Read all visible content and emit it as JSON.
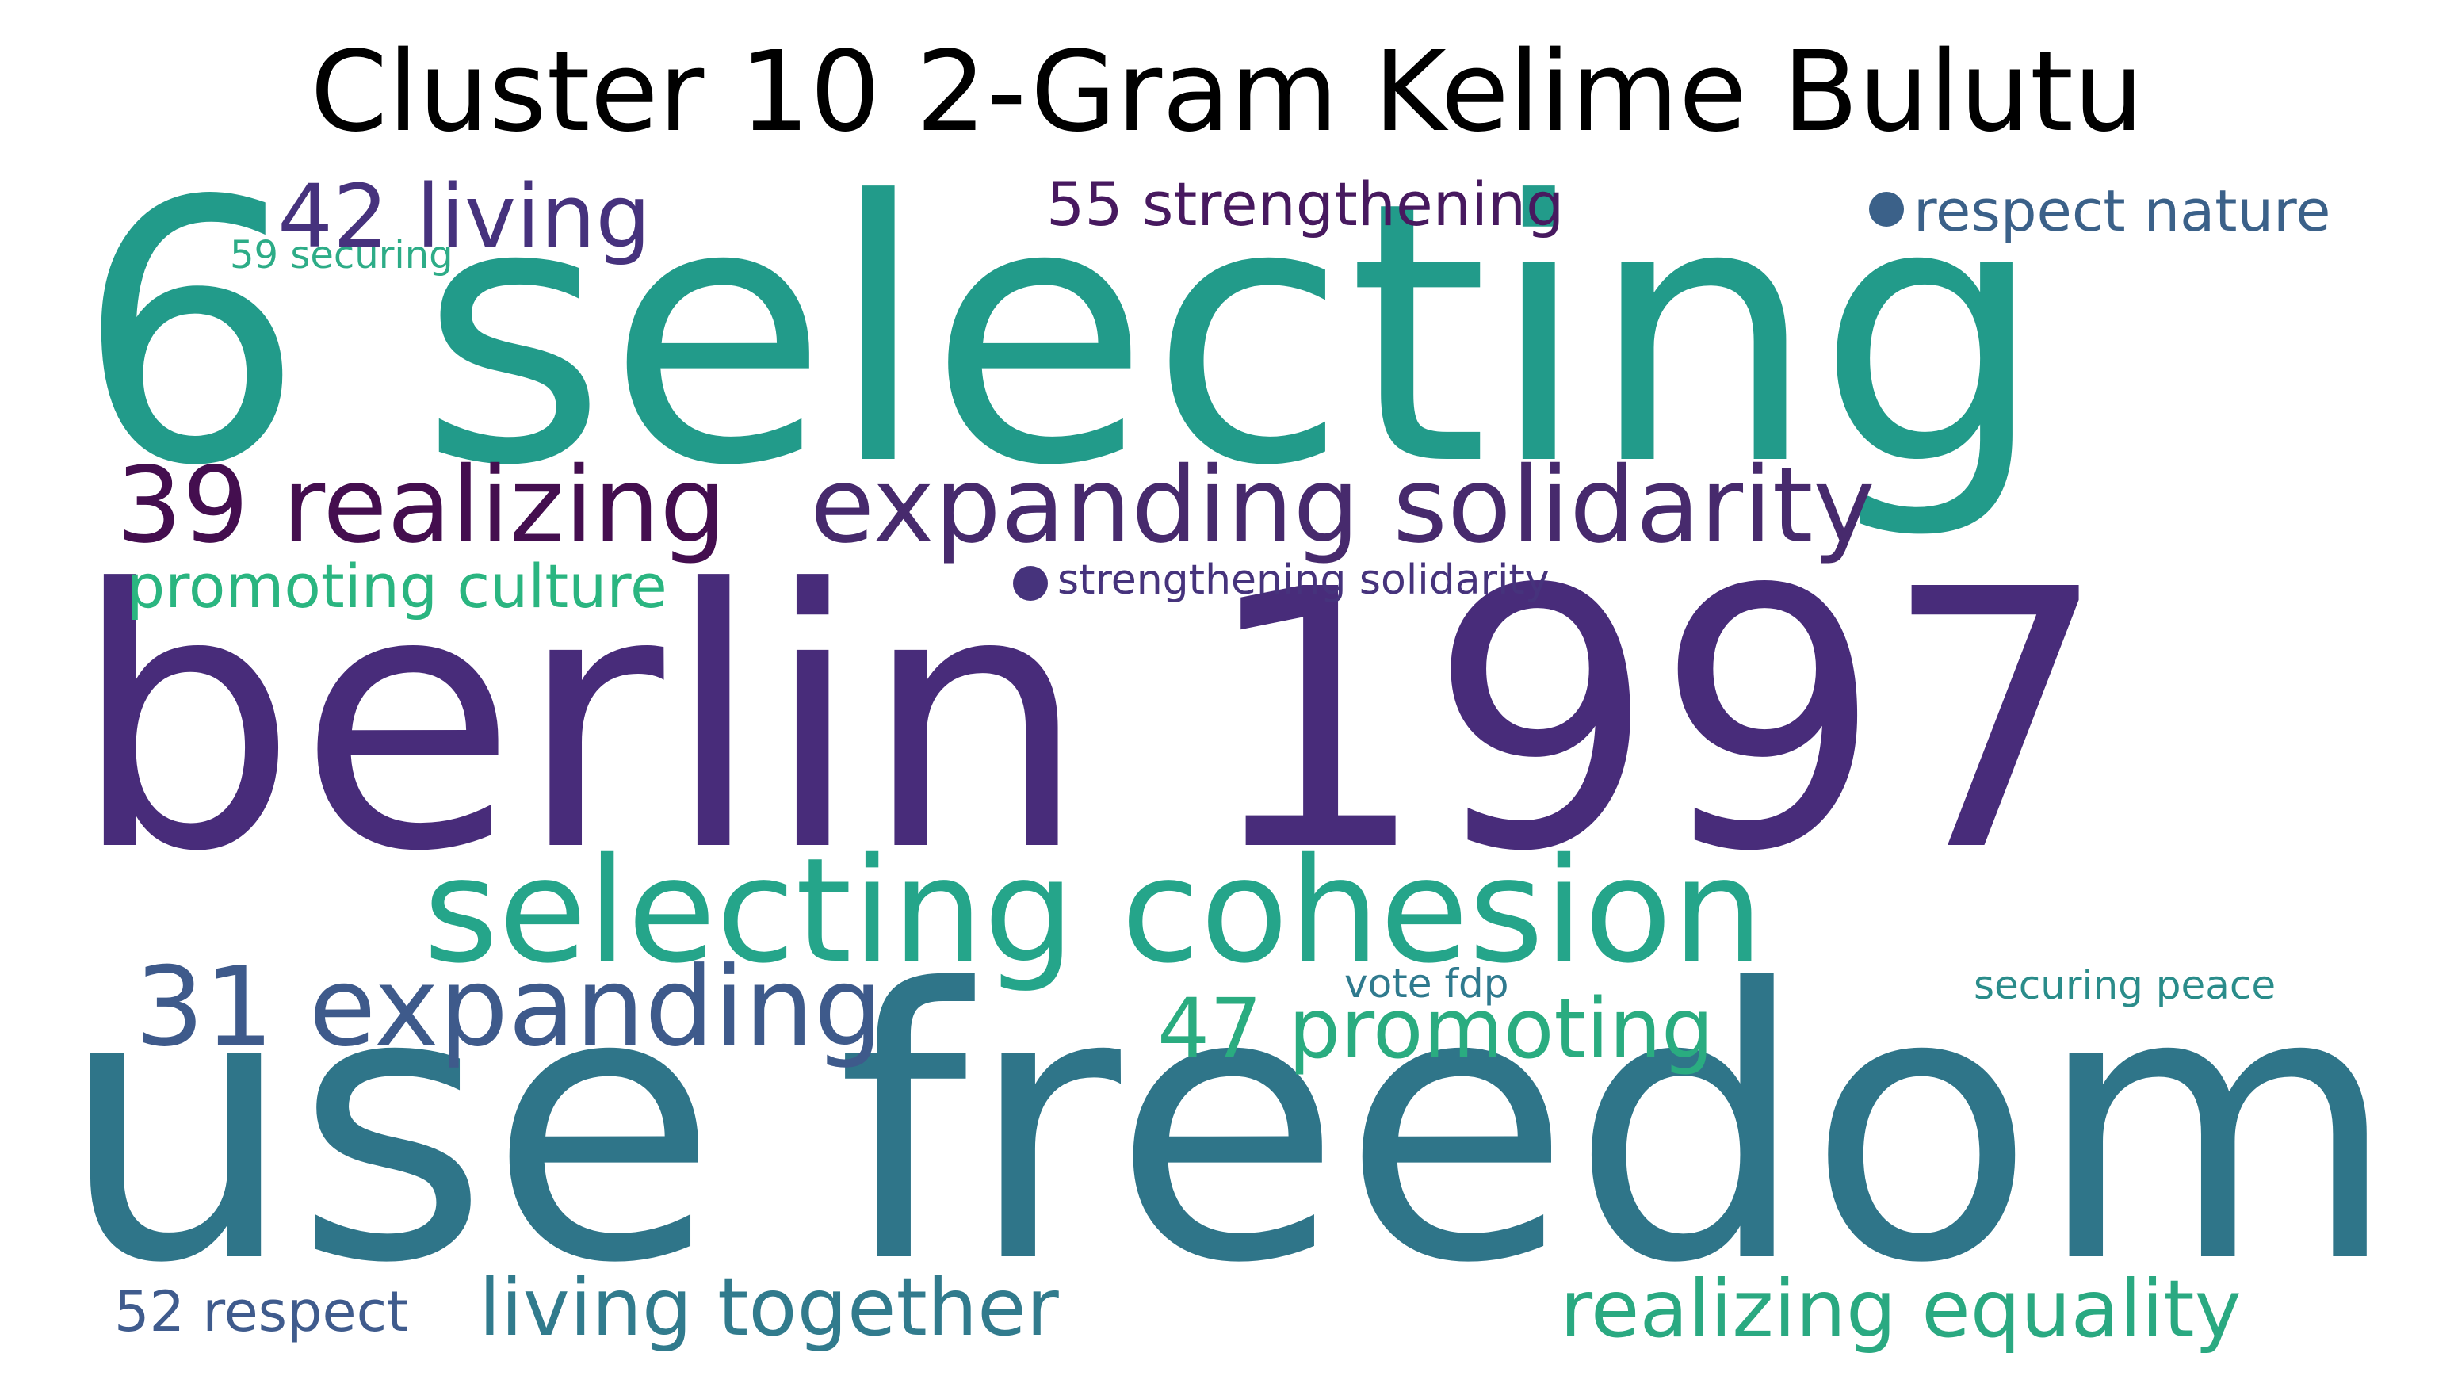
{
  "title": "Cluster 10 2-Gram Kelime Bulutu",
  "colors": {
    "background": "#ffffff",
    "title": "#000000"
  },
  "words": [
    {
      "text": "6 selecting",
      "color": "#229b8a"
    },
    {
      "text": "berlin 1997",
      "color": "#482c7a"
    },
    {
      "text": "use freedom",
      "color": "#2f7589"
    },
    {
      "text": "selecting cohesion",
      "color": "#25a58a"
    },
    {
      "text": "expanding solidarity",
      "color": "#472a6d"
    },
    {
      "text": "39 realizing",
      "color": "#440e4f"
    },
    {
      "text": "42 living",
      "color": "#46327d"
    },
    {
      "text": "31 expanding",
      "color": "#3e5a8b"
    },
    {
      "text": "47 promoting",
      "color": "#2aac80"
    },
    {
      "text": "living together",
      "color": "#317b8d"
    },
    {
      "text": "realizing equality",
      "color": "#2aa981"
    },
    {
      "text": "55 strengthening",
      "color": "#47195f"
    },
    {
      "text": "respect nature",
      "color": "#3b6189"
    },
    {
      "text": "promoting culture",
      "color": "#2ab580"
    },
    {
      "text": "strengthening solidarity",
      "color": "#46337c"
    },
    {
      "text": "52 respect",
      "color": "#3f5b8d"
    },
    {
      "text": "vote fdp",
      "color": "#2f7a8e"
    },
    {
      "text": "securing peace",
      "color": "#2a8c8a"
    },
    {
      "text": "59 securing",
      "color": "#2dac87"
    }
  ]
}
